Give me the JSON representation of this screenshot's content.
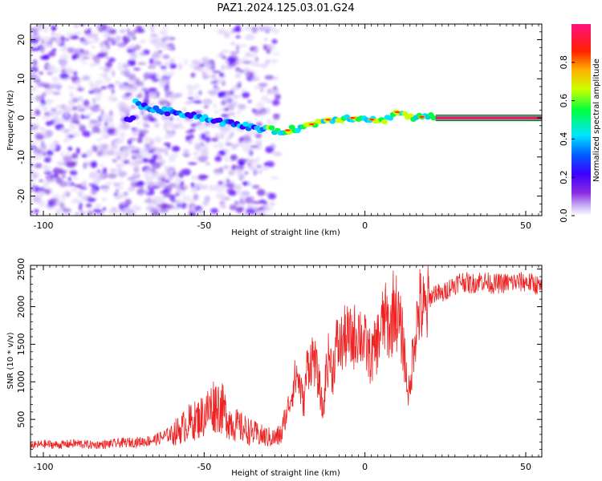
{
  "title": "PAZ1.2024.125.03.01.G24",
  "chart_data": [
    {
      "type": "heatmap",
      "title": "",
      "xlabel": "Height of straight line (km)",
      "ylabel": "Frequency (Hz)",
      "xlim": [
        -104,
        55
      ],
      "ylim": [
        -25,
        24
      ],
      "xticks": [
        -100,
        -50,
        0,
        50
      ],
      "yticks": [
        -20,
        -10,
        0,
        10,
        20
      ],
      "colorbar": {
        "label": "Normalized spectral amplitude",
        "range": [
          0,
          1
        ],
        "ticks": [
          "0.0",
          "0.2",
          "0.4",
          "0.6",
          "0.8"
        ],
        "colormap": [
          "#ffffff",
          "#c9b3f5",
          "#8a2be2",
          "#3b00ff",
          "#0060ff",
          "#00e5ff",
          "#00ff40",
          "#ccff00",
          "#ffb000",
          "#ff2000",
          "#ff1080"
        ]
      },
      "ridge": [
        {
          "x": -72,
          "y": 4
        },
        {
          "x": -65,
          "y": 2
        },
        {
          "x": -55,
          "y": 1
        },
        {
          "x": -45,
          "y": -1
        },
        {
          "x": -38,
          "y": -2
        },
        {
          "x": -30,
          "y": -3
        },
        {
          "x": -26,
          "y": -3.5
        },
        {
          "x": -20,
          "y": -2.5
        },
        {
          "x": -12,
          "y": -0.5
        },
        {
          "x": -5,
          "y": 0
        },
        {
          "x": 0,
          "y": 0
        },
        {
          "x": 5,
          "y": -1
        },
        {
          "x": 10,
          "y": 1.5
        },
        {
          "x": 15,
          "y": 0
        },
        {
          "x": 20,
          "y": 0.5
        },
        {
          "x": 22,
          "y": 0
        },
        {
          "x": 55,
          "y": 0
        }
      ]
    },
    {
      "type": "line",
      "title": "",
      "xlabel": "Height of straight line (km)",
      "ylabel": "SNR (10 * v/v)",
      "xlim": [
        -104,
        55
      ],
      "ylim": [
        0,
        2550
      ],
      "xticks": [
        -100,
        -50,
        0,
        50
      ],
      "yticks": [
        500,
        1000,
        1500,
        2000,
        2500
      ],
      "color": "#ee2222",
      "series": [
        {
          "x": [
            -104,
            -100,
            -95,
            -90,
            -85,
            -80,
            -75,
            -70,
            -65,
            -62,
            -58,
            -55,
            -52,
            -50,
            -47,
            -45,
            -42,
            -40,
            -37,
            -35,
            -32,
            -30,
            -28,
            -26,
            -25,
            -24,
            -23,
            -22,
            -21,
            -20,
            -19,
            -18,
            -16,
            -14,
            -13,
            -12,
            -11,
            -10,
            -9,
            -8,
            -6,
            -4,
            -2,
            0,
            2,
            4,
            6,
            8,
            9,
            10,
            11,
            12,
            13,
            14,
            15,
            17,
            19,
            20,
            22,
            24,
            26,
            28,
            30,
            33,
            36,
            40,
            45,
            50,
            53,
            55
          ],
          "y": [
            150,
            170,
            160,
            180,
            160,
            170,
            190,
            200,
            230,
            280,
            350,
            450,
            500,
            560,
            700,
            680,
            480,
            420,
            360,
            320,
            280,
            260,
            250,
            300,
            450,
            650,
            800,
            1000,
            1100,
            900,
            700,
            1200,
            1350,
            900,
            550,
            1200,
            1350,
            1100,
            1500,
            1450,
            1600,
            1550,
            1700,
            1500,
            1300,
            1550,
            1850,
            1700,
            2050,
            1900,
            1700,
            1500,
            1000,
            800,
            1500,
            2000,
            1900,
            2100,
            2200,
            2150,
            2250,
            2300,
            2350,
            2300,
            2350,
            2300,
            2320,
            2330,
            2300,
            2250
          ]
        }
      ]
    }
  ]
}
